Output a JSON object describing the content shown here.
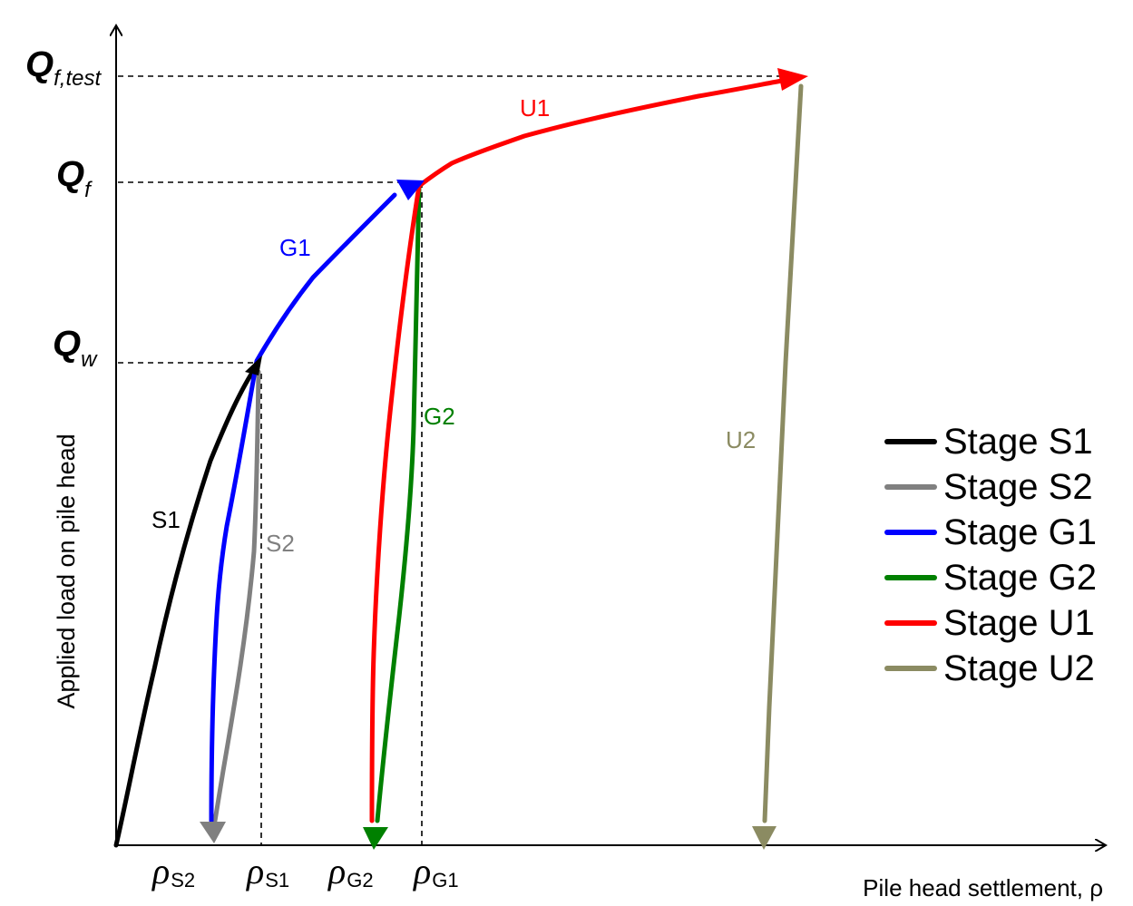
{
  "axes": {
    "x_label": "Pile head settlement, ρ",
    "y_label": "Applied load on pile head",
    "y_ticks": [
      {
        "main": "Q",
        "sub": "f,test"
      },
      {
        "main": "Q",
        "sub": "f"
      },
      {
        "main": "Q",
        "sub": "w"
      }
    ],
    "x_ticks": [
      {
        "main": "ρ",
        "sub": "S2"
      },
      {
        "main": "ρ",
        "sub": "S1"
      },
      {
        "main": "ρ",
        "sub": "G2"
      },
      {
        "main": "ρ",
        "sub": "G1"
      }
    ]
  },
  "curve_labels": {
    "S1": "S1",
    "S2": "S2",
    "G1": "G1",
    "G2": "G2",
    "U1": "U1",
    "U2": "U2"
  },
  "legend": {
    "placement": "right",
    "items": [
      {
        "label": "Stage S1",
        "color": "#000000"
      },
      {
        "label": "Stage S2",
        "color": "#808080"
      },
      {
        "label": "Stage G1",
        "color": "#0000ff"
      },
      {
        "label": "Stage G2",
        "color": "#008000"
      },
      {
        "label": "Stage U1",
        "color": "#ff0000"
      },
      {
        "label": "Stage U2",
        "color": "#8b8b62"
      }
    ]
  },
  "colors": {
    "S1": "#000000",
    "S2": "#808080",
    "G1": "#0000ff",
    "G2": "#008000",
    "U1": "#ff0000",
    "U2": "#8b8b62"
  }
}
